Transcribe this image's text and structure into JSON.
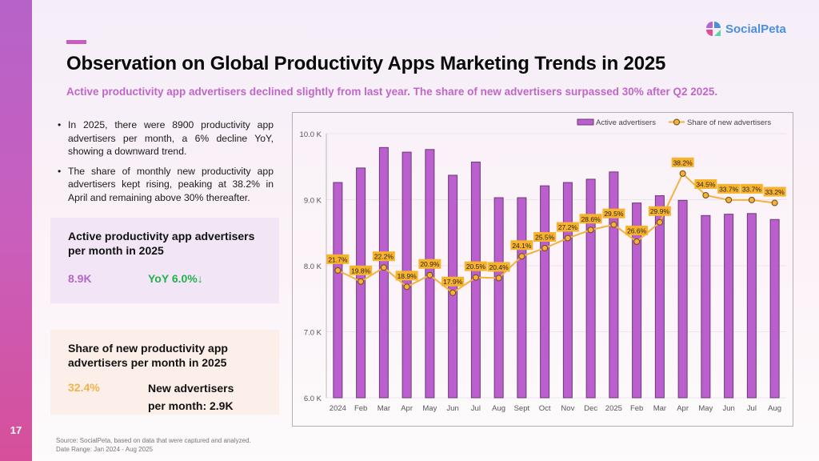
{
  "page": {
    "number": "17",
    "title": "Observation on Global Productivity Apps Marketing Trends in 2025",
    "subtitle": "Active productivity app advertisers declined slightly from last year. The share of new advertisers surpassed 30% after Q2 2025.",
    "logo": {
      "icon": "socialpeta-logo-icon",
      "text": "SocialPeta"
    },
    "accent_colors": {
      "sidebar_top": "#b662c9",
      "sidebar_bottom": "#d64f9a",
      "title_accent": "#c85fbe",
      "subtitle": "#c066c9"
    }
  },
  "bullets": [
    "In 2025, there were 8900 productivity app advertisers per month, a 6% decline YoY, showing a downward trend.",
    "The share of monthly new productivity app advertisers kept rising, peaking at 38.2% in April and remaining above 30% thereafter."
  ],
  "cards": {
    "active": {
      "title": "Active productivity app advertisers per month in 2025",
      "value": "8.9K",
      "yoy": "YoY 6.0%↓"
    },
    "share": {
      "title": "Share of new productivity app advertisers per month in 2025",
      "value": "32.4%",
      "new_label_line1": "New advertisers",
      "new_label_line2": "per month: 2.9K"
    }
  },
  "source": {
    "line1": "Source: SocialPeta, based on data that were captured and analyzed.",
    "line2": "Date Range: Jan 2024 - Aug 2025"
  },
  "chart_data": {
    "type": "bar+line",
    "title": "",
    "categories": [
      "2024",
      "Feb",
      "Mar",
      "Apr",
      "May",
      "Jun",
      "Jul",
      "Aug",
      "Sept",
      "Oct",
      "Nov",
      "Dec",
      "2025",
      "Feb",
      "Mar",
      "Apr",
      "May",
      "Jun",
      "Jul",
      "Aug"
    ],
    "series": [
      {
        "name": "Active advertisers",
        "type": "bar",
        "color": "#bb5fcf",
        "axis": "left",
        "values": [
          9260,
          9480,
          9790,
          9720,
          9760,
          9370,
          9570,
          9030,
          9030,
          9210,
          9260,
          9310,
          9420,
          8950,
          9060,
          8990,
          8760,
          8780,
          8790,
          8700
        ]
      },
      {
        "name": "Share of new advertisers",
        "type": "line",
        "color": "#f5b13d",
        "axis": "right",
        "values": [
          21.7,
          19.8,
          22.2,
          18.9,
          20.9,
          17.9,
          20.5,
          20.4,
          24.1,
          25.5,
          27.2,
          28.6,
          29.5,
          26.6,
          29.9,
          38.2,
          34.5,
          33.7,
          33.7,
          33.2
        ],
        "labels": [
          "21.7%",
          "19.8%",
          "22.2%",
          "18.9%",
          "20.9%",
          "17.9%",
          "20.5%",
          "20.4%",
          "24.1%",
          "25.5%",
          "27.2%",
          "28.6%",
          "29.5%",
          "26.6%",
          "29.9%",
          "38.2%",
          "34.5%",
          "33.7%",
          "33.7%",
          "33.2%"
        ]
      }
    ],
    "ylim": [
      6000,
      10000
    ],
    "yticks": [
      6000,
      7000,
      8000,
      9000,
      10000
    ],
    "ytick_labels": [
      "6.0 K",
      "7.0 K",
      "8.0 K",
      "9.0 K",
      "10.0 K"
    ],
    "y2lim": [
      0,
      45
    ],
    "xlabel": "",
    "ylabel": "",
    "legend": [
      "Active advertisers",
      "Share of new advertisers"
    ],
    "legend_position": "top-right",
    "grid": true
  }
}
